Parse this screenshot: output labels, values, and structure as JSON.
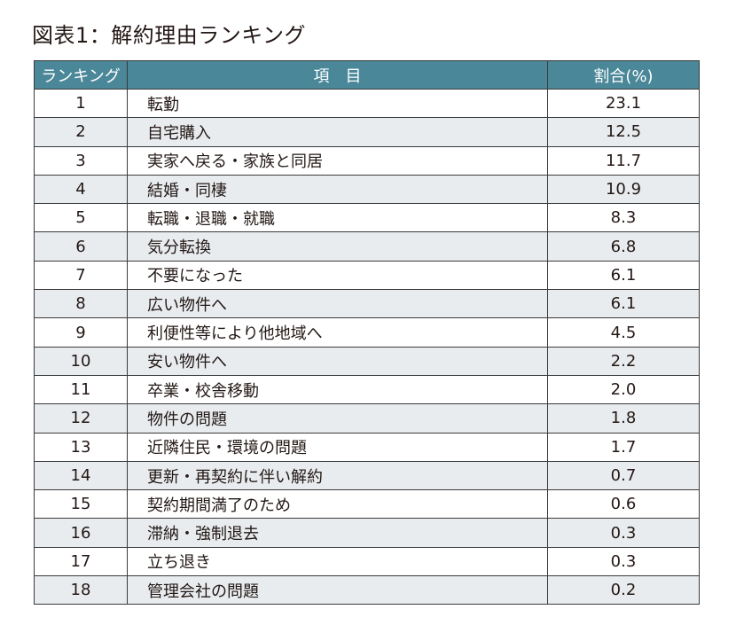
{
  "title": "図表1：解約理由ランキング",
  "chart_data": {
    "type": "table",
    "title": "図表1：解約理由ランキング",
    "columns": [
      "ランキング",
      "項　目",
      "割合(%)"
    ],
    "rows": [
      [
        "1",
        "転勤",
        "23.1"
      ],
      [
        "2",
        "自宅購入",
        "12.5"
      ],
      [
        "3",
        "実家へ戻る・家族と同居",
        "11.7"
      ],
      [
        "4",
        "結婚・同棲",
        "10.9"
      ],
      [
        "5",
        "転職・退職・就職",
        "8.3"
      ],
      [
        "6",
        "気分転換",
        "6.8"
      ],
      [
        "7",
        "不要になった",
        "6.1"
      ],
      [
        "8",
        "広い物件へ",
        "6.1"
      ],
      [
        "9",
        "利便性等により他地域へ",
        "4.5"
      ],
      [
        "10",
        "安い物件へ",
        "2.2"
      ],
      [
        "11",
        "卒業・校舎移動",
        "2.0"
      ],
      [
        "12",
        "物件の問題",
        "1.8"
      ],
      [
        "13",
        "近隣住民・環境の問題",
        "1.7"
      ],
      [
        "14",
        "更新・再契約に伴い解約",
        "0.7"
      ],
      [
        "15",
        "契約期間満了のため",
        "0.6"
      ],
      [
        "16",
        "滞納・強制退去",
        "0.3"
      ],
      [
        "17",
        "立ち退き",
        "0.3"
      ],
      [
        "18",
        "管理会社の問題",
        "0.2"
      ]
    ],
    "colors": {
      "header": "#4a8798",
      "alt_row": "#e8ecef"
    }
  }
}
